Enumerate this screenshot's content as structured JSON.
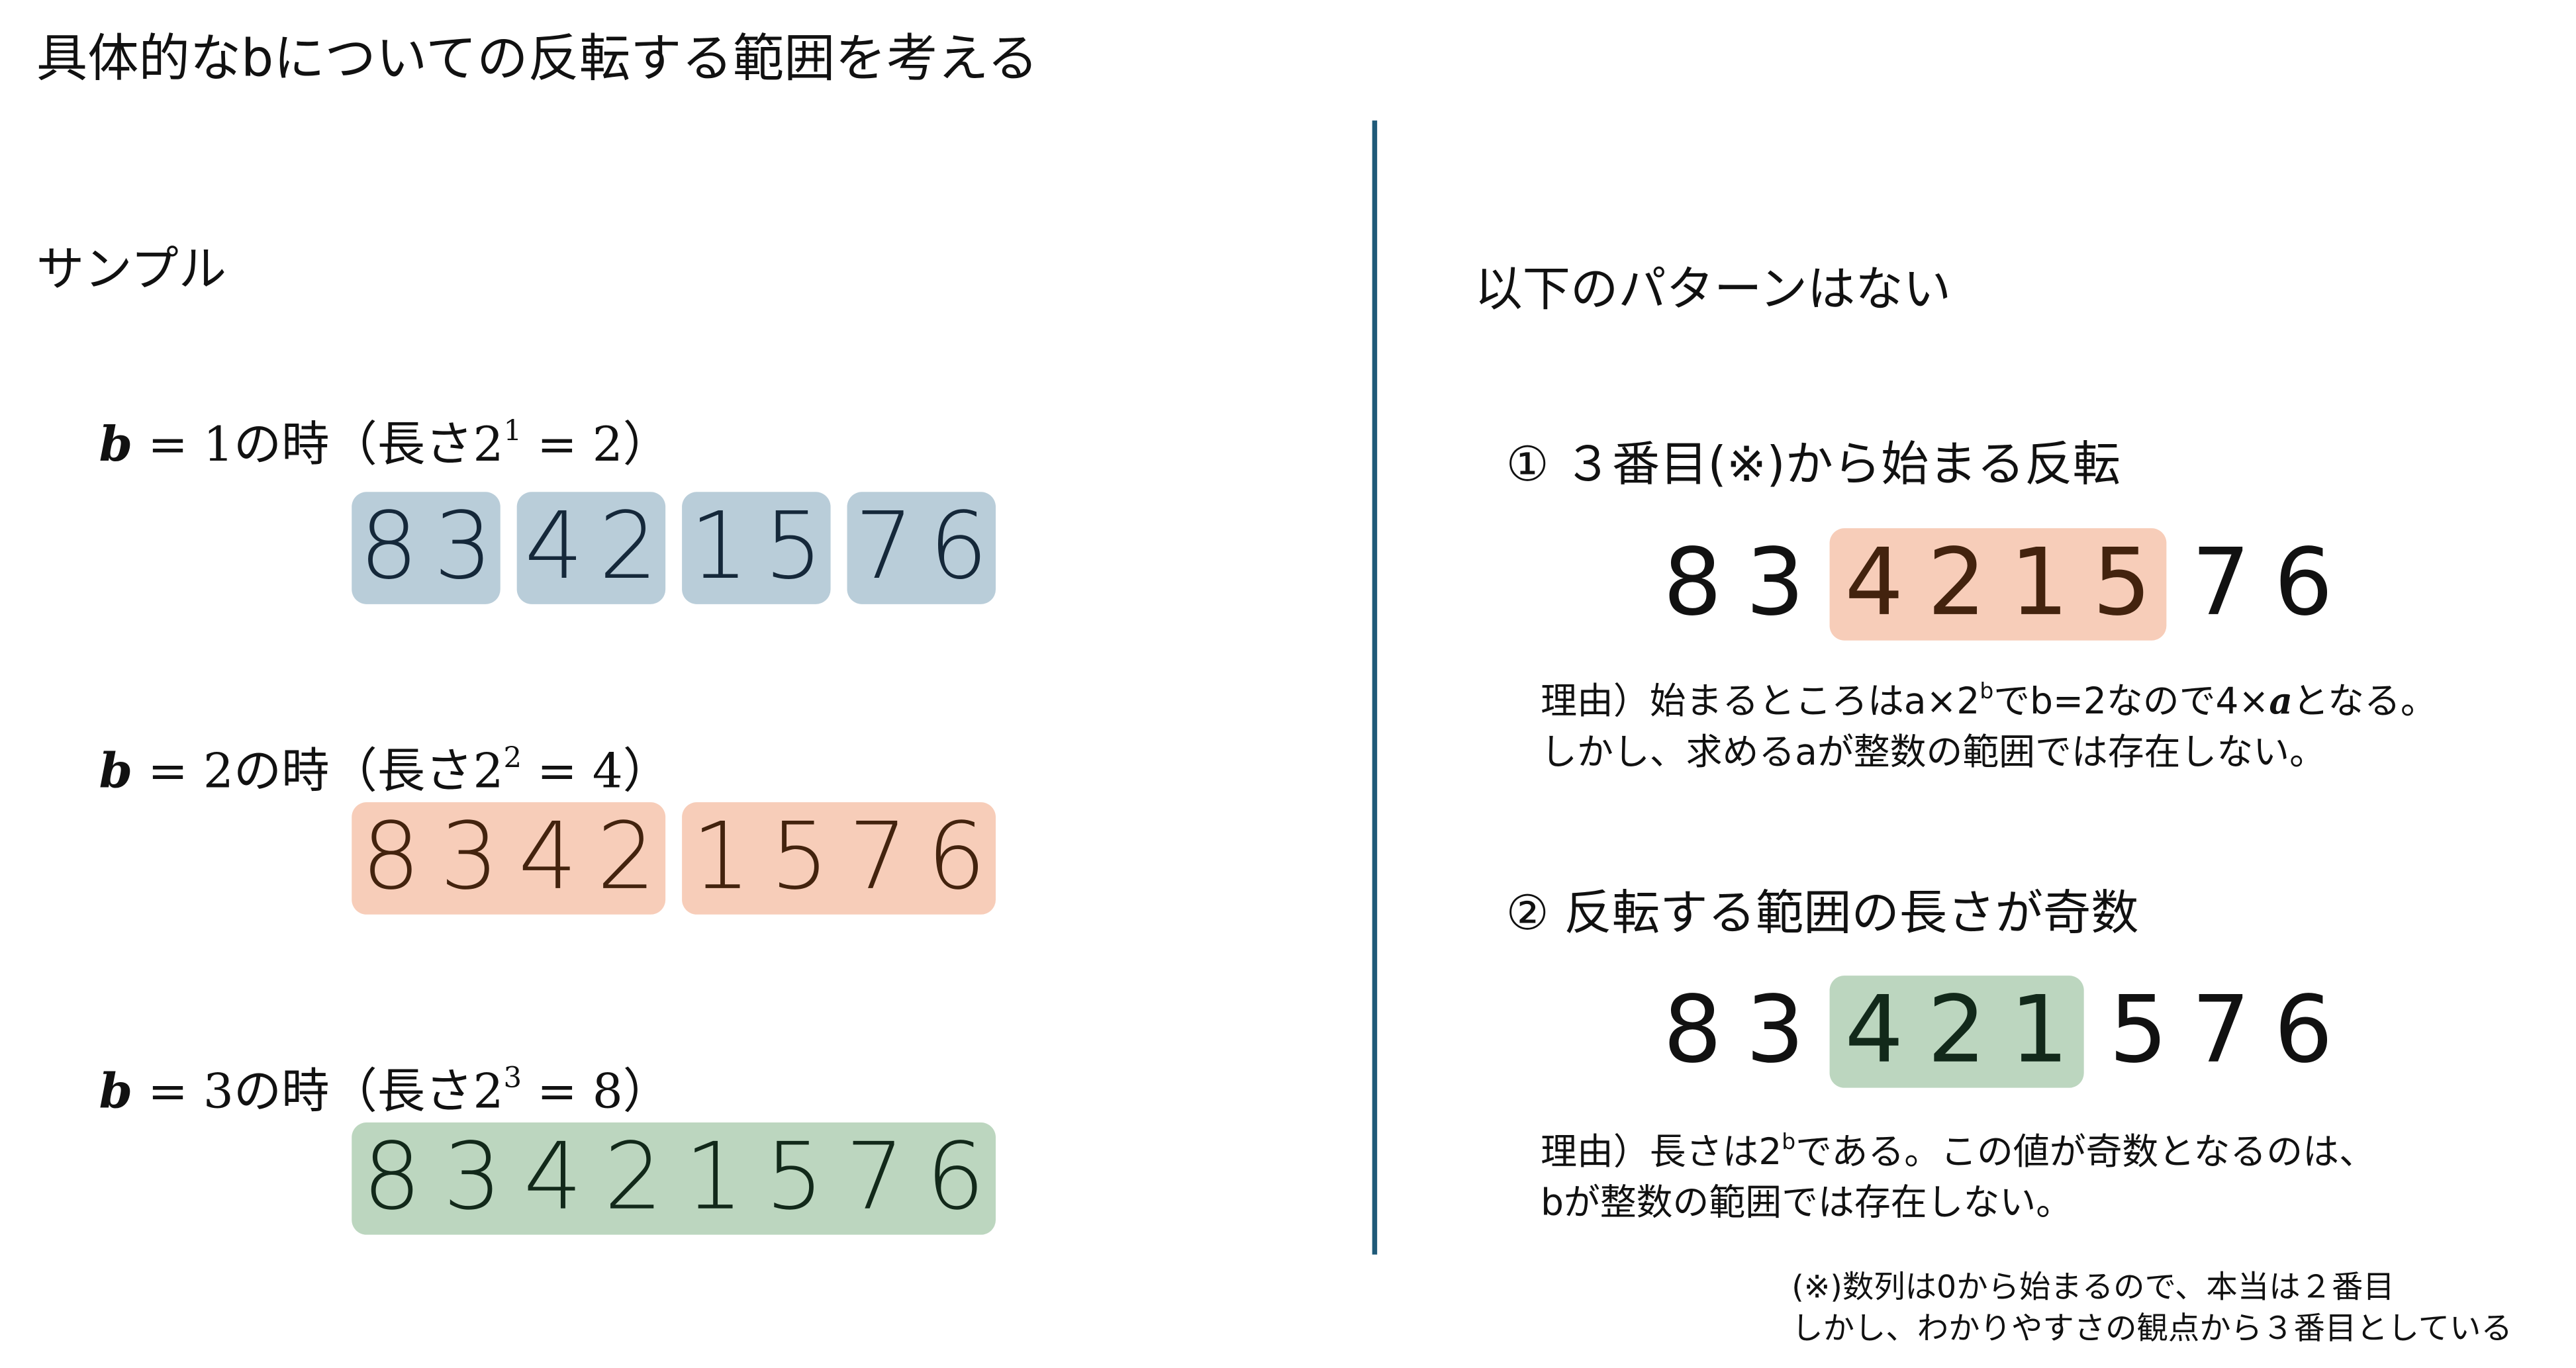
{
  "title": "具体的なbについての反転する範囲を考える",
  "left": {
    "heading": "サンプル",
    "cases": [
      {
        "label": [
          {
            "text": "b",
            "style": "italic"
          },
          {
            "text": " = 1の時（長さ2"
          },
          {
            "text": "1",
            "style": "sup"
          },
          {
            "text": " = 2）"
          }
        ],
        "color": "#b9cdd9",
        "digit_color": "#15283a",
        "groups": [
          [
            "8",
            "3"
          ],
          [
            "4",
            "2"
          ],
          [
            "1",
            "5"
          ],
          [
            "7",
            "6"
          ]
        ]
      },
      {
        "label": [
          {
            "text": "b",
            "style": "italic"
          },
          {
            "text": " = 2の時（長さ2"
          },
          {
            "text": "2",
            "style": "sup"
          },
          {
            "text": " = 4）"
          }
        ],
        "color": "#f7cdb9",
        "digit_color": "#43230e",
        "groups": [
          [
            "8",
            "3",
            "4",
            "2"
          ],
          [
            "1",
            "5",
            "7",
            "6"
          ]
        ]
      },
      {
        "label": [
          {
            "text": "b",
            "style": "italic"
          },
          {
            "text": " = 3の時（長さ2"
          },
          {
            "text": "3",
            "style": "sup"
          },
          {
            "text": " = 8）"
          }
        ],
        "color": "#bcd6bf",
        "digit_color": "#12291a",
        "groups": [
          [
            "8",
            "3",
            "4",
            "2",
            "1",
            "5",
            "7",
            "6"
          ]
        ]
      }
    ]
  },
  "right": {
    "heading": "以下のパターンはない",
    "items": [
      {
        "title": "① ３番目(※)から始まる反転",
        "before": [
          "8",
          "3"
        ],
        "highlighted": [
          "4",
          "2",
          "1",
          "5"
        ],
        "after": [
          "7",
          "6"
        ],
        "color": "#f7cdb9",
        "digit_color": "#43230e",
        "reason": [
          [
            {
              "text": "理由）始まるところはa×2"
            },
            {
              "text": "b",
              "style": "sup"
            },
            {
              "text": "でb=2なので4×"
            },
            {
              "text": "a",
              "style": "italic"
            },
            {
              "text": "となる。"
            }
          ],
          [
            {
              "text": "しかし、求めるaが整数の範囲では存在しない。"
            }
          ]
        ]
      },
      {
        "title": "② 反転する範囲の長さが奇数",
        "before": [
          "8",
          "3"
        ],
        "highlighted": [
          "4",
          "2",
          "1"
        ],
        "after": [
          "5",
          "7",
          "6"
        ],
        "color": "#bcd6bf",
        "digit_color": "#12291a",
        "reason": [
          [
            {
              "text": "理由）長さは2"
            },
            {
              "text": "b",
              "style": "sup"
            },
            {
              "text": "である。この値が奇数となるのは、"
            }
          ],
          [
            {
              "text": "bが整数の範囲では存在しない。"
            }
          ]
        ]
      }
    ]
  },
  "footnote": [
    "(※)数列は0から始まるので、本当は２番目",
    "しかし、わかりやすさの観点から３番目としている"
  ]
}
